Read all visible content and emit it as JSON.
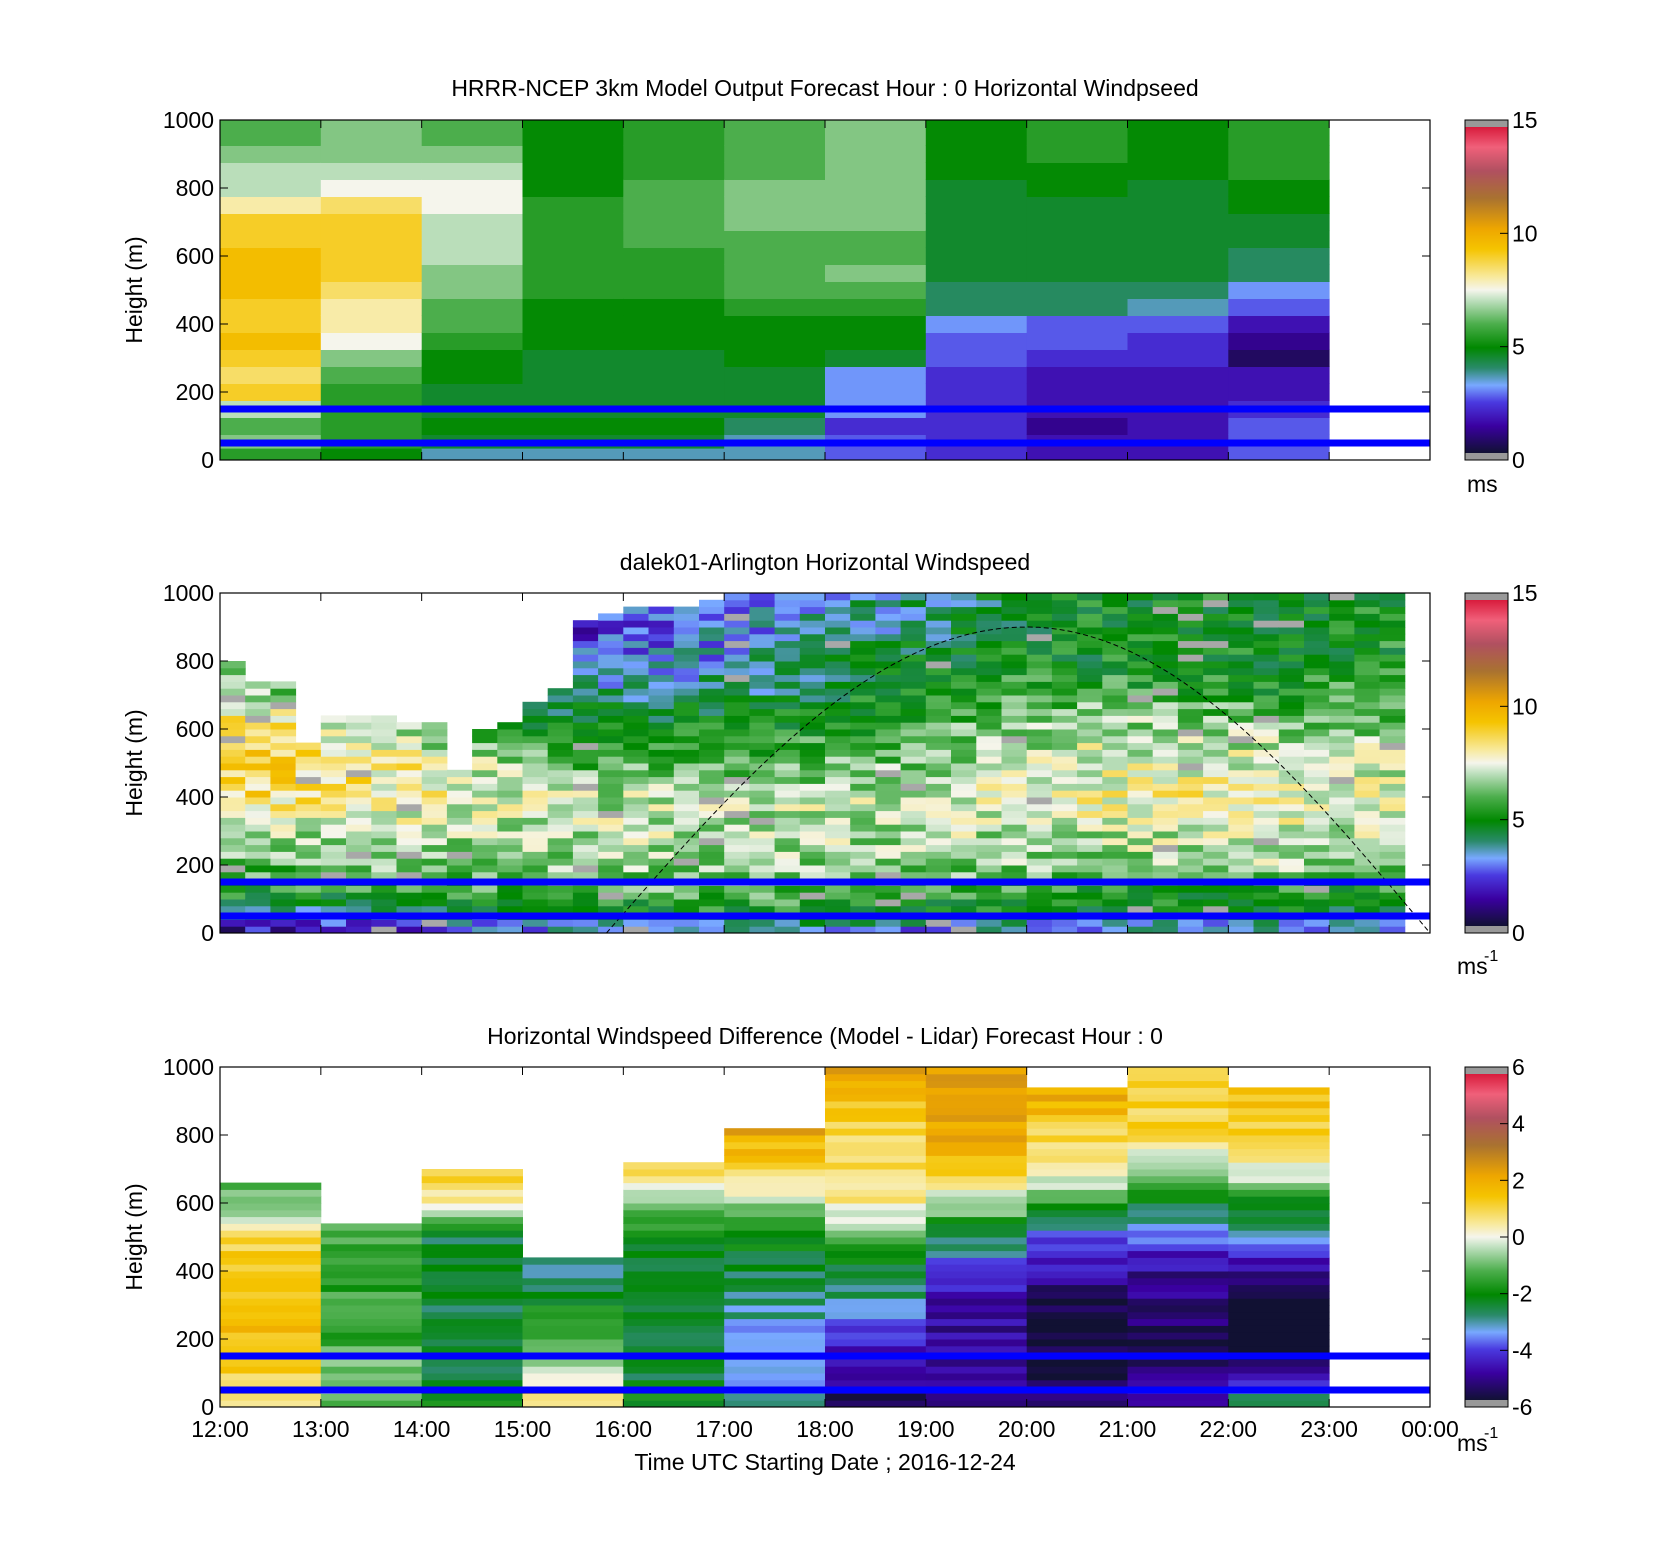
{
  "figure": {
    "xtick_labels": [
      "12:00",
      "13:00",
      "14:00",
      "15:00",
      "16:00",
      "17:00",
      "18:00",
      "19:00",
      "20:00",
      "21:00",
      "22:00",
      "23:00",
      "00:00"
    ],
    "xlabel": "Time UTC  Starting Date ; 2016-12-24",
    "ylabel": "Height (m)",
    "ytick_labels": [
      "0",
      "200",
      "400",
      "600",
      "800",
      "1000"
    ],
    "reference_lines": [
      {
        "height": 50,
        "color": "#0000ff"
      },
      {
        "height": 150,
        "color": "#0000ff"
      }
    ]
  },
  "colorbars": [
    {
      "ticks": [
        "0",
        "5",
        "10",
        "15"
      ],
      "unit": "ms",
      "exponent": ""
    },
    {
      "ticks": [
        "0",
        "5",
        "10",
        "15"
      ],
      "unit": "ms",
      "exponent": "-1"
    },
    {
      "ticks": [
        "-6",
        "-4",
        "-2",
        "0",
        "2",
        "4",
        "6"
      ],
      "unit": "ms",
      "exponent": "-1"
    }
  ],
  "chart_data": [
    {
      "type": "heatmap",
      "title": "HRRR-NCEP 3km Model Output   Forecast Hour : 0 Horizontal Windpseed",
      "xlabel": "",
      "ylabel": "Height (m)",
      "x_range": [
        "12:00",
        "00:00"
      ],
      "ylim": [
        0,
        1000
      ],
      "clim": [
        0,
        15
      ],
      "x_columns": [
        "12:00",
        "13:00",
        "14:00",
        "15:00",
        "16:00",
        "17:00",
        "18:00",
        "19:00",
        "20:00",
        "21:00",
        "22:00"
      ],
      "heights": [
        20,
        50,
        100,
        150,
        200,
        250,
        300,
        350,
        400,
        450,
        500,
        550,
        600,
        650,
        700,
        750,
        800,
        850,
        900,
        950
      ],
      "windspeed": [
        [
          5.5,
          6.5,
          6.0,
          7.0,
          9.0,
          8.5,
          9.0,
          9.5,
          9.0,
          9.0,
          9.5,
          9.5,
          9.5,
          9.0,
          9.0,
          8.0,
          7.0,
          7.0,
          6.5,
          6.0
        ],
        [
          5.0,
          5.5,
          5.5,
          5.5,
          5.5,
          6.0,
          6.5,
          7.5,
          8.0,
          8.0,
          8.5,
          9.0,
          9.0,
          9.0,
          9.0,
          8.5,
          7.5,
          7.0,
          6.5,
          6.5
        ],
        [
          3.5,
          4.5,
          5.0,
          4.5,
          4.5,
          5.0,
          5.0,
          5.5,
          6.0,
          6.0,
          6.5,
          6.5,
          7.0,
          7.0,
          7.0,
          7.5,
          7.5,
          7.0,
          6.5,
          6.0
        ],
        [
          3.5,
          4.5,
          5.0,
          4.5,
          4.5,
          4.5,
          4.5,
          5.0,
          5.0,
          5.0,
          5.5,
          5.5,
          5.5,
          5.5,
          5.5,
          5.5,
          5.0,
          5.0,
          5.0,
          5.0
        ],
        [
          3.5,
          4.5,
          5.0,
          4.5,
          4.5,
          4.5,
          4.5,
          5.0,
          5.0,
          5.0,
          5.5,
          5.5,
          5.5,
          6.0,
          6.0,
          6.0,
          6.0,
          5.5,
          5.5,
          5.5
        ],
        [
          3.5,
          3.5,
          4.0,
          4.5,
          4.5,
          4.5,
          5.0,
          5.0,
          5.0,
          5.5,
          6.0,
          6.0,
          6.0,
          6.0,
          6.5,
          6.5,
          6.5,
          6.0,
          6.0,
          6.0
        ],
        [
          2.5,
          2.5,
          2.0,
          3.0,
          3.0,
          3.0,
          4.5,
          5.0,
          5.0,
          5.5,
          6.0,
          6.5,
          6.0,
          6.0,
          6.5,
          6.5,
          6.5,
          6.5,
          6.5,
          6.5
        ],
        [
          2.0,
          2.0,
          2.0,
          2.0,
          2.0,
          2.0,
          2.5,
          2.5,
          3.0,
          4.0,
          4.0,
          4.5,
          4.5,
          4.5,
          4.5,
          4.5,
          4.5,
          5.0,
          5.0,
          5.0
        ],
        [
          1.5,
          1.5,
          1.0,
          1.5,
          1.5,
          1.5,
          2.0,
          2.5,
          2.5,
          4.0,
          4.0,
          4.5,
          4.5,
          4.5,
          4.5,
          4.5,
          5.0,
          5.0,
          5.5,
          5.5
        ],
        [
          1.5,
          1.5,
          1.5,
          1.5,
          1.5,
          1.5,
          2.0,
          2.0,
          2.5,
          3.5,
          4.0,
          4.5,
          4.5,
          4.5,
          4.5,
          4.5,
          4.5,
          5.0,
          5.0,
          5.0
        ],
        [
          2.5,
          2.5,
          2.5,
          2.0,
          1.5,
          1.5,
          0.5,
          1.0,
          1.5,
          2.5,
          3.0,
          4.0,
          4.0,
          4.5,
          4.5,
          5.0,
          5.0,
          5.5,
          5.5,
          5.5
        ]
      ]
    },
    {
      "type": "heatmap",
      "title": "dalek01-Arlington  Horizontal Windspeed",
      "xlabel": "",
      "ylabel": "Height (m)",
      "x_range": [
        "12:00",
        "00:00"
      ],
      "ylim": [
        0,
        1000
      ],
      "clim": [
        0,
        15
      ],
      "columns_per_hour": 4,
      "max_valid_height": [
        790,
        730,
        730,
        550,
        630,
        630,
        640,
        620,
        610,
        480,
        600,
        620,
        680,
        720,
        920,
        940,
        950,
        950,
        960,
        980,
        1000,
        1000,
        1000,
        1000,
        1000,
        1000,
        1000,
        1000,
        1000,
        1000,
        1000,
        1000,
        1000,
        1000,
        1000,
        1000,
        1000,
        1000,
        1000,
        1000,
        1000,
        1000,
        1000,
        1000,
        1000,
        1000,
        1000
      ],
      "profile_heights": [
        20,
        50,
        100,
        150,
        200,
        300,
        400,
        500,
        600,
        700,
        800,
        900,
        1000
      ],
      "profile_windspeed": [
        [
          1.5,
          3.5,
          5.0,
          5.5,
          6.0,
          7.0,
          8.5,
          9.0,
          9.0,
          7.0,
          6.0,
          5.0,
          5.0
        ],
        [
          2.0,
          4.0,
          5.0,
          6.0,
          6.5,
          7.0,
          8.0,
          8.0,
          6.5,
          5.0,
          4.0,
          3.0,
          3.0
        ],
        [
          3.0,
          4.5,
          5.5,
          6.0,
          6.5,
          7.0,
          7.0,
          6.0,
          5.0,
          4.0,
          2.5,
          2.0,
          2.0
        ],
        [
          3.5,
          5.0,
          6.0,
          6.5,
          6.5,
          7.0,
          7.0,
          6.0,
          5.0,
          4.0,
          3.5,
          3.0,
          3.0
        ],
        [
          3.0,
          4.5,
          5.5,
          6.0,
          6.5,
          7.0,
          7.0,
          6.5,
          6.0,
          5.5,
          5.0,
          4.0,
          4.0
        ],
        [
          3.0,
          4.5,
          5.0,
          5.5,
          6.5,
          7.0,
          8.0,
          7.5,
          7.0,
          6.0,
          5.0,
          5.0,
          5.0
        ],
        [
          3.0,
          4.5,
          5.0,
          6.0,
          7.0,
          7.5,
          8.0,
          7.5,
          6.5,
          5.5,
          5.0,
          5.0,
          5.0
        ],
        [
          3.0,
          4.5,
          5.0,
          5.5,
          6.0,
          7.0,
          7.0,
          7.0,
          6.5,
          6.0,
          5.5,
          5.0,
          5.0
        ]
      ],
      "dashed_curve": {
        "x_start": "15:50",
        "x_peak": "20:00",
        "x_end": "00:00",
        "peak_height": 900
      }
    },
    {
      "type": "heatmap",
      "title": "Horizontal Windspeed Difference (Model - Lidar) Forecast Hour : 0",
      "xlabel": "Time UTC  Starting Date ; 2016-12-24",
      "ylabel": "Height (m)",
      "x_range": [
        "12:00",
        "00:00"
      ],
      "ylim": [
        0,
        1000
      ],
      "clim": [
        -6,
        6
      ],
      "x_columns": [
        "12:00",
        "13:00",
        "14:00",
        "15:00",
        "16:00",
        "17:00",
        "18:00",
        "19:00",
        "20:00",
        "21:00",
        "22:00"
      ],
      "column_top": [
        645,
        535,
        690,
        480,
        715,
        820,
        1000,
        1000,
        960,
        1000,
        960
      ],
      "profile_heights": [
        20,
        50,
        100,
        150,
        200,
        300,
        400,
        500,
        600,
        700,
        800,
        900,
        1000
      ],
      "difference": [
        [
          1.0,
          1.0,
          1.0,
          1.5,
          1.5,
          1.5,
          1.5,
          1.0,
          -1.0,
          -1.0,
          null,
          null,
          null
        ],
        [
          -1.0,
          -0.5,
          -1.0,
          -1.0,
          -1.5,
          -1.5,
          -1.5,
          -1.5,
          null,
          null,
          null,
          null,
          null
        ],
        [
          -2.0,
          -2.0,
          -2.5,
          -2.5,
          -2.5,
          -2.5,
          -2.5,
          -2.5,
          0.5,
          1.0,
          null,
          null,
          null
        ],
        [
          0.5,
          1.0,
          -0.5,
          -1.0,
          -1.5,
          -2.0,
          -3.0,
          null,
          null,
          null,
          null,
          null,
          null
        ],
        [
          -2.0,
          -2.0,
          -2.5,
          -2.5,
          -2.5,
          -2.5,
          -2.5,
          -2.0,
          -1.0,
          1.0,
          null,
          null,
          null
        ],
        [
          -3.0,
          -3.5,
          -3.5,
          -4.0,
          -3.5,
          -3.0,
          -2.5,
          -2.0,
          -0.5,
          1.0,
          2.0,
          null,
          null
        ],
        [
          -5.5,
          -5.5,
          -5.0,
          -5.0,
          -4.5,
          -3.0,
          -2.5,
          -1.0,
          0.5,
          1.0,
          1.0,
          1.5,
          2.5
        ],
        [
          -5.0,
          -5.0,
          -5.0,
          -5.0,
          -5.0,
          -5.0,
          -4.5,
          -2.5,
          -0.5,
          1.5,
          2.0,
          2.5,
          2.5
        ],
        [
          -5.5,
          -5.5,
          -6.0,
          -6.0,
          -6.0,
          -6.0,
          -5.0,
          -4.0,
          -1.5,
          0.5,
          1.0,
          2.0,
          null
        ],
        [
          -4.5,
          -5.0,
          -5.5,
          -5.5,
          -5.5,
          -5.5,
          -5.0,
          -4.0,
          -2.5,
          -0.5,
          1.0,
          1.0,
          1.0
        ],
        [
          -2.5,
          -3.5,
          -5.0,
          -6.5,
          -6.5,
          -6.5,
          -5.0,
          -3.5,
          -2.0,
          0.0,
          1.0,
          1.5,
          null
        ]
      ]
    }
  ]
}
